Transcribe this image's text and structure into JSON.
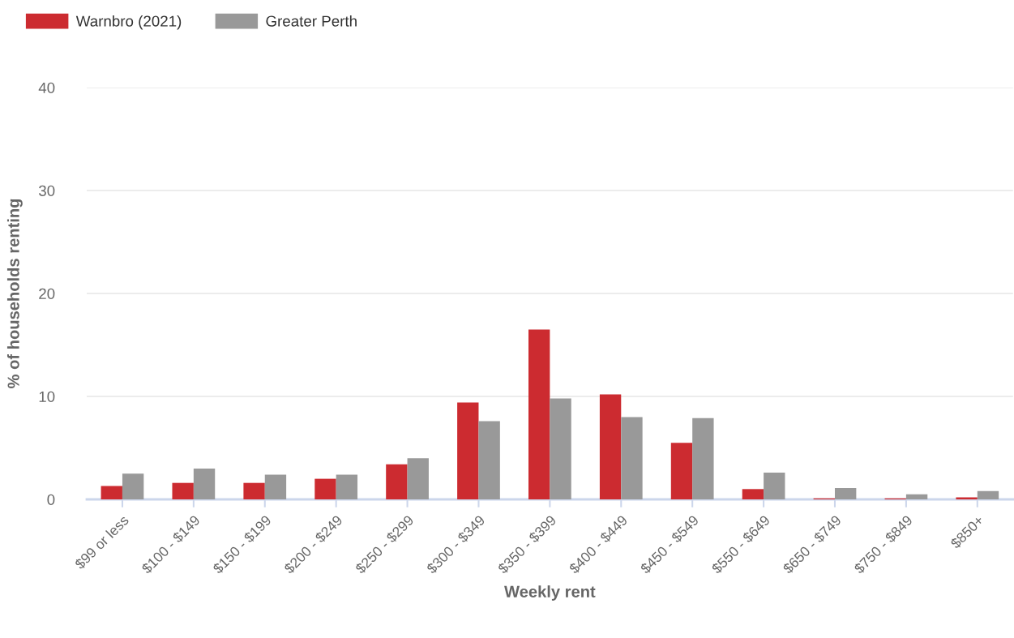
{
  "chart_data": {
    "type": "bar",
    "xlabel": "Weekly rent",
    "ylabel": "% of households renting",
    "categories": [
      "$99 or less",
      "$100 - $149",
      "$150 - $199",
      "$200 - $249",
      "$250 - $299",
      "$300 - $349",
      "$350 - $399",
      "$400 - $449",
      "$450 - $549",
      "$550 - $649",
      "$650 - $749",
      "$750 - $849",
      "$850+"
    ],
    "series": [
      {
        "name": "Warnbro (2021)",
        "color": "#cc2b30",
        "values": [
          1.3,
          1.6,
          1.6,
          2.0,
          3.4,
          9.4,
          16.5,
          10.2,
          5.5,
          1.0,
          0.1,
          0.1,
          0.2
        ]
      },
      {
        "name": "Greater Perth",
        "color": "#999999",
        "values": [
          2.5,
          3.0,
          2.4,
          2.4,
          4.0,
          7.6,
          9.8,
          8.0,
          7.9,
          2.6,
          1.1,
          0.5,
          0.8
        ]
      }
    ],
    "ylim": [
      0,
      40
    ],
    "yticks": [
      0,
      10,
      20,
      30,
      40
    ],
    "grid": "y",
    "legend": "top left"
  }
}
